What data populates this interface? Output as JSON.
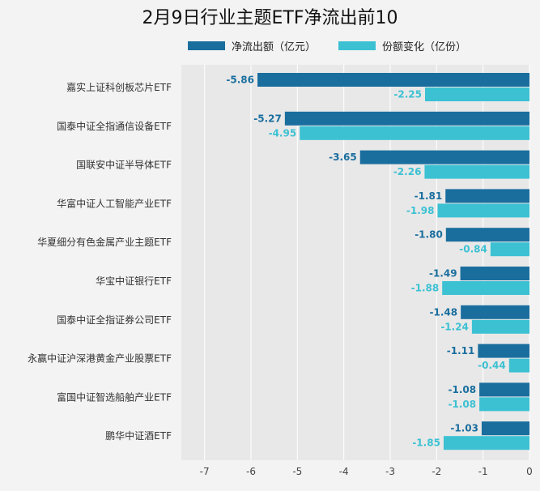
{
  "chart_data": {
    "type": "bar",
    "orientation": "horizontal",
    "title": "2月9日行业主题ETF净流出前10",
    "categories": [
      "嘉实上证科创板芯片ETF",
      "国泰中证全指通信设备ETF",
      "国联安中证半导体ETF",
      "华富中证人工智能产业ETF",
      "华夏细分有色金属产业主题ETF",
      "华宝中证银行ETF",
      "国泰中证全指证券公司ETF",
      "永赢中证沪深港黄金产业股票ETF",
      "富国中证智选船舶产业ETF",
      "鹏华中证酒ETF"
    ],
    "series": [
      {
        "name": "净流出额（亿元）",
        "color": "#1a6e9e",
        "label_color": "#1a6e9e",
        "values": [
          -5.86,
          -5.27,
          -3.65,
          -1.81,
          -1.8,
          -1.49,
          -1.48,
          -1.11,
          -1.08,
          -1.03
        ]
      },
      {
        "name": "份额变化（亿份）",
        "color": "#3cc1d3",
        "label_color": "#3cc1d3",
        "values": [
          -2.25,
          -4.95,
          -2.26,
          -1.98,
          -0.84,
          -1.88,
          -1.24,
          -0.44,
          -1.08,
          -1.85
        ]
      }
    ],
    "x_ticks": [
      "-7",
      "-6",
      "-5",
      "-4",
      "-3",
      "-2",
      "-1",
      "0"
    ],
    "xlim": [
      -7.5,
      0
    ],
    "grid": true,
    "legend_position": "top"
  }
}
